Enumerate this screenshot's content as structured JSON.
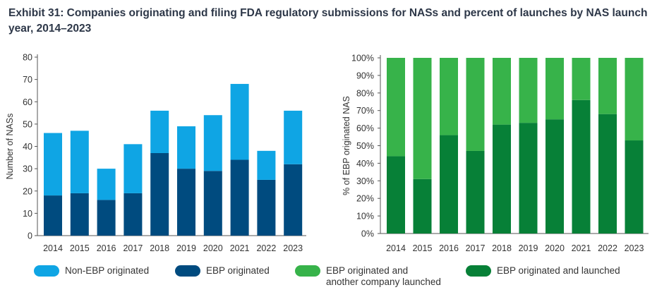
{
  "title": "Exhibit 31: Companies originating and filing FDA regulatory submissions for NASs and percent of launches by NAS launch year, 2014–2023",
  "colors": {
    "non_ebp": "#0fa5e4",
    "ebp": "#004b7f",
    "ebp_other_launched": "#37b34a",
    "ebp_launched": "#078037",
    "axis": "#555555"
  },
  "chart_data": [
    {
      "type": "bar",
      "stacked": true,
      "title": "",
      "xlabel": "",
      "ylabel": "Number of NASs",
      "ylim": [
        0,
        80
      ],
      "yticks": [
        0,
        10,
        20,
        30,
        40,
        50,
        60,
        70,
        80
      ],
      "ytick_labels": [
        "0",
        "10",
        "20",
        "30",
        "40",
        "50",
        "60",
        "70",
        "80"
      ],
      "categories": [
        "2014",
        "2015",
        "2016",
        "2017",
        "2018",
        "2019",
        "2020",
        "2021",
        "2022",
        "2023"
      ],
      "series": [
        {
          "name": "EBP originated",
          "color_key": "ebp",
          "values": [
            18,
            19,
            16,
            19,
            37,
            30,
            29,
            34,
            25,
            32
          ]
        },
        {
          "name": "Non-EBP originated",
          "color_key": "non_ebp",
          "values": [
            28,
            28,
            14,
            22,
            19,
            19,
            25,
            34,
            13,
            24
          ]
        }
      ]
    },
    {
      "type": "bar",
      "stacked": true,
      "title": "",
      "xlabel": "",
      "ylabel": "% of EBP originated NAS",
      "ylim": [
        0,
        100
      ],
      "yticks": [
        0,
        10,
        20,
        30,
        40,
        50,
        60,
        70,
        80,
        90,
        100
      ],
      "ytick_labels": [
        "0%",
        "10%",
        "20%",
        "30%",
        "40%",
        "50%",
        "60%",
        "70%",
        "80%",
        "90%",
        "100%"
      ],
      "categories": [
        "2014",
        "2015",
        "2016",
        "2017",
        "2018",
        "2019",
        "2020",
        "2021",
        "2022",
        "2023"
      ],
      "series": [
        {
          "name": "EBP originated and launched",
          "color_key": "ebp_launched",
          "values": [
            44,
            31,
            56,
            47,
            62,
            63,
            65,
            76,
            68,
            53
          ]
        },
        {
          "name": "EBP originated and another company launched",
          "color_key": "ebp_other_launched",
          "values": [
            56,
            69,
            44,
            53,
            38,
            37,
            35,
            24,
            32,
            47
          ]
        }
      ]
    }
  ],
  "legend": [
    {
      "label": "Non-EBP originated",
      "color_key": "non_ebp"
    },
    {
      "label": "EBP originated",
      "color_key": "ebp"
    },
    {
      "label": "EBP originated and\nanother company launched",
      "color_key": "ebp_other_launched"
    },
    {
      "label": "EBP originated and launched",
      "color_key": "ebp_launched"
    }
  ]
}
